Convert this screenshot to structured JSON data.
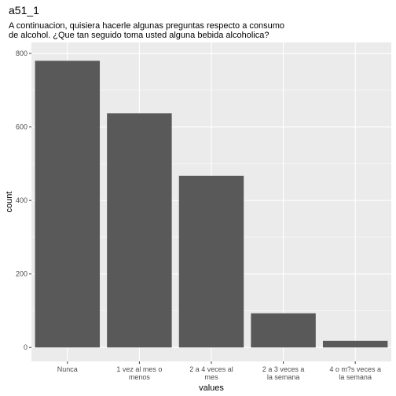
{
  "chart_data": {
    "type": "bar",
    "title": "a51_1",
    "subtitle_lines": [
      "A continuacion, quisiera hacerle algunas preguntas respecto a consumo",
      "de alcohol. ¿Que tan seguido toma usted alguna bebida alcoholica?"
    ],
    "xlabel": "values",
    "ylabel": "count",
    "categories": [
      [
        "Nunca"
      ],
      [
        "1 vez al mes o",
        "menos"
      ],
      [
        "2 a 4 veces al",
        "mes"
      ],
      [
        "2 a 3 veces a",
        "la semana"
      ],
      [
        "4 o m?s veces a",
        "la semana"
      ]
    ],
    "values": [
      780,
      637,
      467,
      93,
      18
    ],
    "yticks": [
      0,
      200,
      400,
      600,
      800
    ],
    "ylim": [
      -38,
      830
    ],
    "grid": true,
    "bar_color": "#595959",
    "panel_color": "#ebebeb",
    "grid_color": "#ffffff"
  }
}
